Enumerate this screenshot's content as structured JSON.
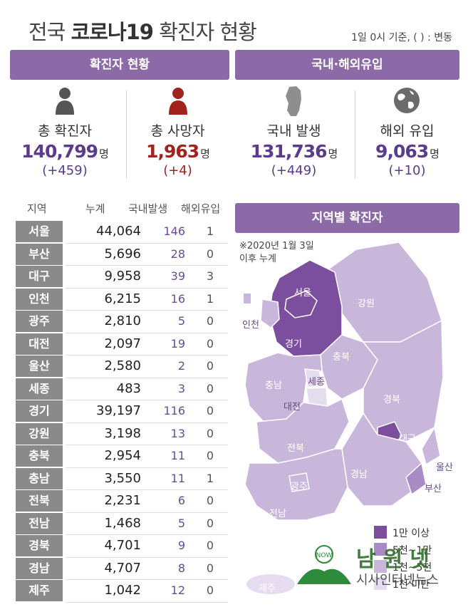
{
  "title_prefix": "전국 ",
  "title_bold": "코로나19",
  "title_suffix": " 확진자 현황",
  "note": "1일 0시 기준, ( ) : 변동",
  "confirmed_header": "확진자 현황",
  "inflow_header": "국내·해외유입",
  "stats": {
    "total": {
      "label": "총 확진자",
      "value": "140,799",
      "unit": "명",
      "change": "(+459)"
    },
    "deaths": {
      "label": "총 사망자",
      "value": "1,963",
      "unit": "명",
      "change": "(+4)"
    },
    "domestic": {
      "label": "국내 발생",
      "value": "131,736",
      "unit": "명",
      "change": "(+449)"
    },
    "overseas": {
      "label": "해외 유입",
      "value": "9,063",
      "unit": "명",
      "change": "(+10)"
    }
  },
  "table_headers": [
    "지역",
    "누계",
    "국내발생",
    "해외유입"
  ],
  "regions": [
    {
      "name": "서울",
      "total": "44,064",
      "domestic": "146",
      "overseas": "1"
    },
    {
      "name": "부산",
      "total": "5,696",
      "domestic": "28",
      "overseas": "0"
    },
    {
      "name": "대구",
      "total": "9,958",
      "domestic": "39",
      "overseas": "3"
    },
    {
      "name": "인천",
      "total": "6,215",
      "domestic": "16",
      "overseas": "1"
    },
    {
      "name": "광주",
      "total": "2,810",
      "domestic": "5",
      "overseas": "0"
    },
    {
      "name": "대전",
      "total": "2,097",
      "domestic": "19",
      "overseas": "0"
    },
    {
      "name": "울산",
      "total": "2,580",
      "domestic": "2",
      "overseas": "0"
    },
    {
      "name": "세종",
      "total": "483",
      "domestic": "3",
      "overseas": "0"
    },
    {
      "name": "경기",
      "total": "39,197",
      "domestic": "116",
      "overseas": "0"
    },
    {
      "name": "강원",
      "total": "3,198",
      "domestic": "13",
      "overseas": "0"
    },
    {
      "name": "충북",
      "total": "2,954",
      "domestic": "11",
      "overseas": "0"
    },
    {
      "name": "충남",
      "total": "3,550",
      "domestic": "11",
      "overseas": "1"
    },
    {
      "name": "전북",
      "total": "2,231",
      "domestic": "6",
      "overseas": "0"
    },
    {
      "name": "전남",
      "total": "1,468",
      "domestic": "5",
      "overseas": "0"
    },
    {
      "name": "경북",
      "total": "4,701",
      "domestic": "9",
      "overseas": "0"
    },
    {
      "name": "경남",
      "total": "4,707",
      "domestic": "8",
      "overseas": "0"
    },
    {
      "name": "제주",
      "total": "1,042",
      "domestic": "12",
      "overseas": "0"
    }
  ],
  "map_header": "지역별 확진자",
  "map_note_1": "※2020년 1월 3일",
  "map_note_2": "이후 누계",
  "map_labels": {
    "seoul": "서울",
    "incheon": "인천",
    "gyeonggi": "경기",
    "gangwon": "강원",
    "chungbuk": "충북",
    "chungnam": "충남",
    "sejong": "세종",
    "daejeon": "대전",
    "gyeongbuk": "경북",
    "daegu": "대구",
    "jeonbuk": "전북",
    "gwangju": "광주",
    "jeonnam": "전남",
    "gyeongnam": "경남",
    "ulsan": "울산",
    "busan": "부산",
    "jeju": "제주"
  },
  "legend": [
    {
      "label": "1만 이상",
      "color": "#7b4f9e"
    },
    {
      "label": "5천~1만",
      "color": "#a98bc6"
    },
    {
      "label": "1천~5천",
      "color": "#c9b7db"
    },
    {
      "label": "1천 미만",
      "color": "#e6dcef"
    }
  ],
  "watermark_1": "남원넷",
  "watermark_2": "시사인터넷뉴스",
  "colors": {
    "accent": "#8b6aa7",
    "dark_purple": "#7b4f9e"
  }
}
